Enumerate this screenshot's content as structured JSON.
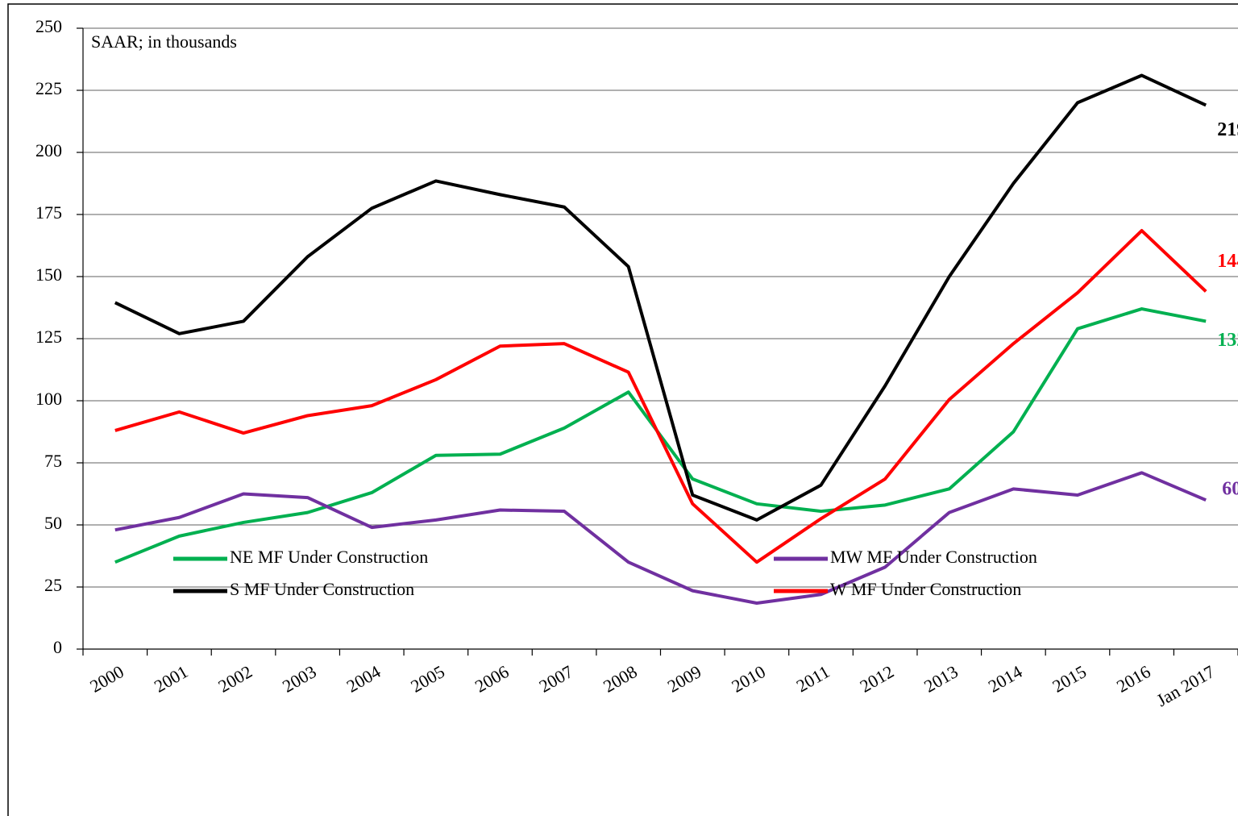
{
  "chart_data": {
    "type": "line",
    "annotation": "SAAR; in thousands",
    "categories": [
      "2000",
      "2001",
      "2002",
      "2003",
      "2004",
      "2005",
      "2006",
      "2007",
      "2008",
      "2009",
      "2010",
      "2011",
      "2012",
      "2013",
      "2014",
      "2015",
      "2016",
      "Jan 2017"
    ],
    "series": [
      {
        "name": "NE MF Under Construction",
        "color": "#00b050",
        "values": [
          35,
          45.5,
          51,
          55,
          63,
          78,
          78.5,
          89,
          103.5,
          68.5,
          58.5,
          55.5,
          58,
          64.5,
          87.5,
          129,
          137,
          132
        ]
      },
      {
        "name": "MW MF Under Construction",
        "color": "#7030a0",
        "values": [
          48,
          53,
          62.5,
          61,
          49,
          52,
          56,
          55.5,
          35,
          23.5,
          18.5,
          22,
          33,
          55,
          64.5,
          62,
          71,
          60
        ]
      },
      {
        "name": "S MF Under Construction",
        "color": "#000000",
        "values": [
          139.5,
          127,
          132,
          158,
          177.5,
          188.5,
          183,
          178,
          154,
          62,
          52,
          66,
          106,
          150,
          187.5,
          220,
          231,
          219
        ]
      },
      {
        "name": "W MF Under Construction",
        "color": "#ff0000",
        "values": [
          88,
          95.5,
          87,
          94,
          98,
          108.5,
          122,
          123,
          111.5,
          58.5,
          35,
          52.5,
          68.5,
          100.5,
          123,
          143.5,
          168.5,
          144
        ]
      }
    ],
    "ylim": [
      0,
      250
    ],
    "yticks": [
      0,
      25,
      50,
      75,
      100,
      125,
      150,
      175,
      200,
      225,
      250
    ],
    "grid": true
  }
}
